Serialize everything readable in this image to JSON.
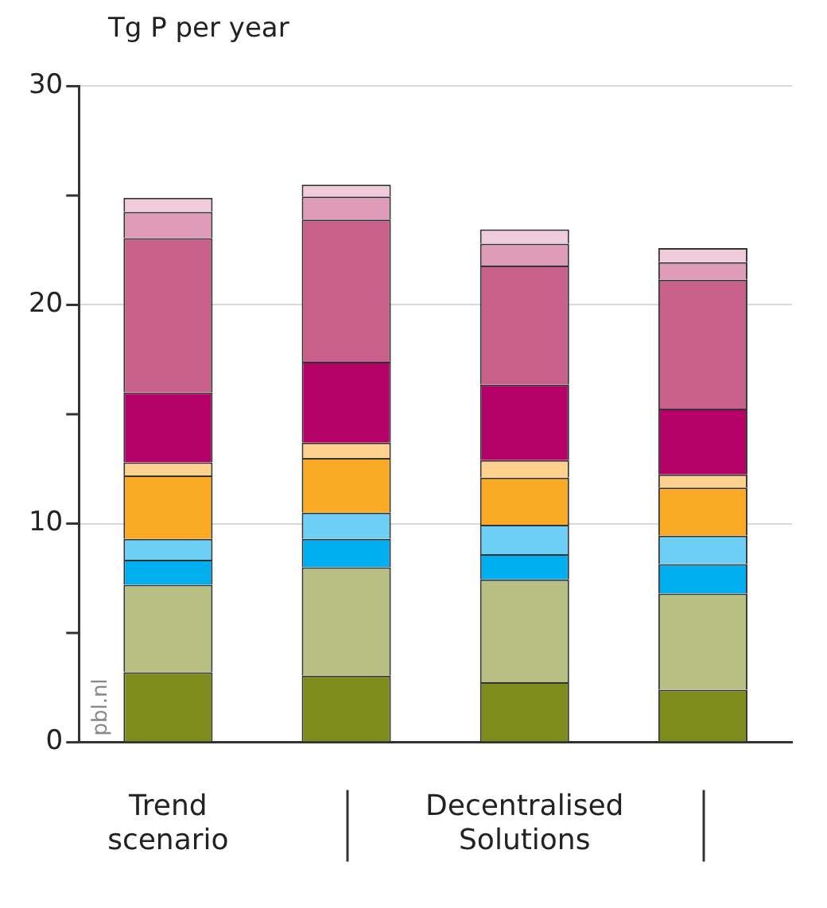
{
  "chart_data": {
    "type": "bar",
    "stacked": true,
    "ylabel": "Tg P per year",
    "categories": [
      "Trend scenario",
      null,
      "Decentralised Solutions",
      null
    ],
    "series": [
      {
        "color": "#7f8c1e",
        "values": [
          3.2,
          3.05,
          2.75,
          2.4
        ]
      },
      {
        "color": "#b8bf82",
        "values": [
          4.0,
          4.95,
          4.7,
          4.4
        ]
      },
      {
        "color": "#00adef",
        "values": [
          1.15,
          1.3,
          1.15,
          1.35
        ]
      },
      {
        "color": "#6dcff6",
        "values": [
          0.95,
          1.2,
          1.35,
          1.3
        ]
      },
      {
        "color": "#fbaa26",
        "values": [
          2.9,
          2.5,
          2.15,
          2.2
        ]
      },
      {
        "color": "#fed18f",
        "values": [
          0.6,
          0.7,
          0.8,
          0.6
        ]
      },
      {
        "color": "#b50068",
        "values": [
          3.2,
          3.7,
          3.45,
          3.0
        ]
      },
      {
        "color": "#c8608c",
        "values": [
          7.05,
          6.5,
          5.45,
          5.9
        ]
      },
      {
        "color": "#de9cb8",
        "values": [
          1.2,
          1.05,
          1.0,
          0.8
        ]
      },
      {
        "color": "#f0cbdb",
        "values": [
          0.65,
          0.55,
          0.65,
          0.65
        ]
      }
    ],
    "ylim": [
      0,
      30
    ],
    "yticks": [
      0,
      {
        "value": 5,
        "label": null
      },
      10,
      {
        "value": 15,
        "label": null
      },
      20,
      {
        "value": 25,
        "label": null
      },
      30
    ],
    "grid": "y",
    "legend": false,
    "annotations": [
      "pbl.nl"
    ]
  }
}
